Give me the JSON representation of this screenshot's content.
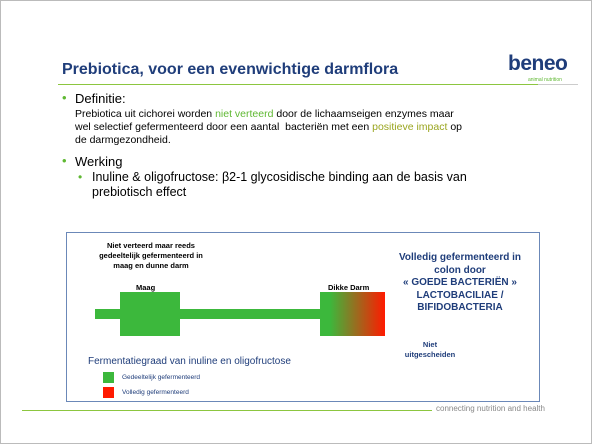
{
  "header": {
    "title": "Prebiotica, voor een evenwichtige darmflora",
    "logo": "beneo",
    "logo_sub": "animal nutrition"
  },
  "bullets": {
    "definition_label": "Definitie:",
    "definition_lines": [
      [
        "Prebiotica uit cichorei worden ",
        "niet verteerd",
        " door de lichaamseigen enzymes maar"
      ],
      [
        "wel selectief gefermenteerd door een aantal  bacteriën met een ",
        "positieve impact",
        " op"
      ],
      [
        "de darmgezondheid."
      ]
    ],
    "working_label": "Werking",
    "working_sub": [
      "Inuline & oligofructose: β2-1 glycosidische binding aan de basis van",
      "prebiotisch effect"
    ]
  },
  "diagram": {
    "stomach_note": [
      "Niet verteerd maar reeds",
      "gedeeltelijk gefermenteerd in",
      "maag en dunne darm"
    ],
    "stomach": "Maag",
    "colon": "Dikke Darm",
    "colon_note": [
      "Volledig gefermenteerd in",
      "colon door",
      "« GOEDE BACTERIËN »",
      "LACTOBACILIAE /",
      "BIFIDOBACTERIA"
    ],
    "not_excreted": [
      "Niet",
      "uitgescheiden"
    ],
    "caption": "Fermentatiegraad van inuline en oligofructose",
    "legend": [
      "Gedeeltelijk gefermenteerd",
      "Volledig gefermenteerd"
    ]
  },
  "footer": {
    "tagline": "connecting nutrition and health"
  }
}
